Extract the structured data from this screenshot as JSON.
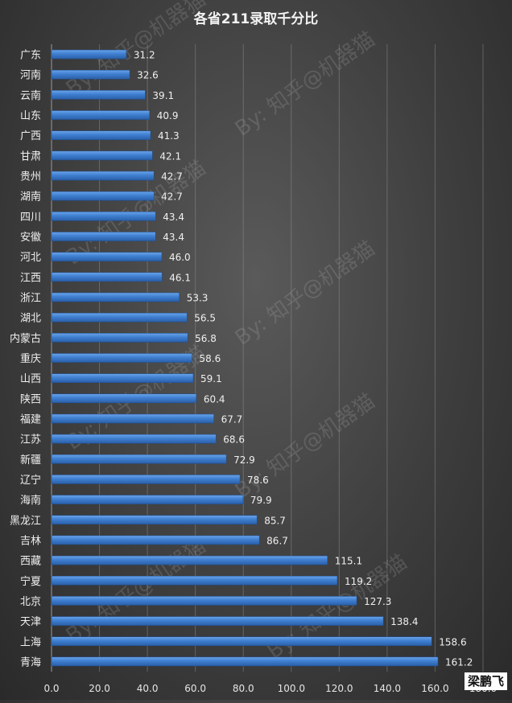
{
  "chart_data": {
    "type": "bar",
    "orientation": "horizontal",
    "title": "各省211录取千分比",
    "categories": [
      "广东",
      "河南",
      "云南",
      "山东",
      "广西",
      "甘肃",
      "贵州",
      "湖南",
      "四川",
      "安徽",
      "河北",
      "江西",
      "浙江",
      "湖北",
      "内蒙古",
      "重庆",
      "山西",
      "陕西",
      "福建",
      "江苏",
      "新疆",
      "辽宁",
      "海南",
      "黑龙江",
      "吉林",
      "西藏",
      "宁夏",
      "北京",
      "天津",
      "上海",
      "青海"
    ],
    "values": [
      31.2,
      32.6,
      39.1,
      40.9,
      41.3,
      42.1,
      42.7,
      42.7,
      43.4,
      43.4,
      46.0,
      46.1,
      53.3,
      56.5,
      56.8,
      58.6,
      59.1,
      60.4,
      67.7,
      68.6,
      72.9,
      78.6,
      79.9,
      85.7,
      86.7,
      115.1,
      119.2,
      127.3,
      138.4,
      158.6,
      161.2
    ],
    "value_labels": [
      "31.2",
      "32.6",
      "39.1",
      "40.9",
      "41.3",
      "42.1",
      "42.7",
      "42.7",
      "43.4",
      "43.4",
      "46.0",
      "46.1",
      "53.3",
      "56.5",
      "56.8",
      "58.6",
      "59.1",
      "60.4",
      "67.7",
      "68.6",
      "72.9",
      "78.6",
      "79.9",
      "85.7",
      "86.7",
      "115.1",
      "119.2",
      "127.3",
      "138.4",
      "158.6",
      "161.2"
    ],
    "xlim": [
      0,
      180
    ],
    "xticks": [
      "0.0",
      "20.0",
      "40.0",
      "60.0",
      "80.0",
      "100.0",
      "120.0",
      "140.0",
      "160.0",
      "180.0"
    ],
    "grid": true,
    "bar_color": "#3f7fd0",
    "watermark": "By: 知乎@机器猫",
    "signature": "梁鹏飞"
  }
}
